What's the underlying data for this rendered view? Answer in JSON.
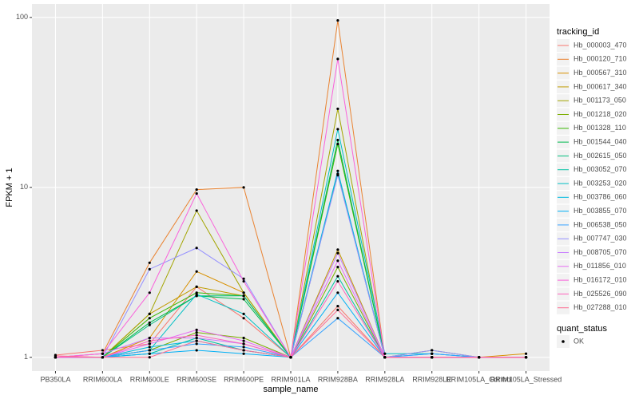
{
  "chart_data": {
    "type": "line",
    "x_label": "sample_name",
    "y_label": "FPKM + 1",
    "log_y": true,
    "grid": true,
    "categories": [
      "PB350LA",
      "RRIM600LA",
      "RRIM600LE",
      "RRIM600SE",
      "RRIM600PE",
      "RRIM901LA",
      "RRIM928BA",
      "RRIM928LA",
      "RRIM928LE",
      "RRIM105LA_Control",
      "RRIM105LA_Stressed"
    ],
    "ylim": [
      0.83,
      120
    ],
    "yticks": [
      1,
      10,
      100
    ],
    "legend_title": "tracking_id",
    "legend_position": "right",
    "point_legend_title": "quant_status",
    "point_legend_labels": [
      "OK"
    ],
    "point_color": "#000000",
    "series": [
      {
        "name": "Hb_000003_470",
        "color": "#F8766D",
        "values": [
          1.03,
          1.1,
          1.2,
          2.6,
          1.7,
          1,
          2.0,
          1,
          1,
          1,
          1
        ]
      },
      {
        "name": "Hb_000120_710",
        "color": "#EA8331",
        "values": [
          1,
          1.05,
          3.6,
          9.7,
          10,
          1,
          96,
          1,
          1,
          1,
          1
        ]
      },
      {
        "name": "Hb_000567_310",
        "color": "#D89000",
        "values": [
          1,
          1,
          1.3,
          3.2,
          2.4,
          1,
          12,
          1,
          1,
          1,
          1.05
        ]
      },
      {
        "name": "Hb_000617_340",
        "color": "#C09B00",
        "values": [
          1,
          1,
          1.8,
          2.6,
          2.3,
          1,
          4.3,
          1,
          1,
          1,
          1
        ]
      },
      {
        "name": "Hb_001173_050",
        "color": "#A3A500",
        "values": [
          1,
          1,
          1.8,
          7.3,
          2.4,
          1,
          29,
          1,
          1,
          1,
          1
        ]
      },
      {
        "name": "Hb_001218_020",
        "color": "#7CAE00",
        "values": [
          1,
          1,
          1.1,
          1.4,
          1.3,
          1,
          3.4,
          1,
          1.1,
          1,
          1
        ]
      },
      {
        "name": "Hb_001328_110",
        "color": "#39B600",
        "values": [
          1,
          1,
          1.7,
          2.4,
          2.3,
          1,
          18,
          1,
          1,
          1,
          1
        ]
      },
      {
        "name": "Hb_001544_040",
        "color": "#00BB4E",
        "values": [
          1,
          1,
          1.6,
          2.3,
          2.2,
          1,
          19,
          1,
          1,
          1,
          1
        ]
      },
      {
        "name": "Hb_002615_050",
        "color": "#00BF7D",
        "values": [
          1,
          1,
          1.55,
          2.3,
          2.3,
          1,
          12,
          1,
          1,
          1,
          1
        ]
      },
      {
        "name": "Hb_003052_070",
        "color": "#00C1A3",
        "values": [
          1,
          1,
          1.05,
          1.3,
          1.1,
          1,
          3.0,
          1,
          1,
          1,
          1
        ]
      },
      {
        "name": "Hb_003253_020",
        "color": "#00BFC4",
        "values": [
          1,
          1,
          1.1,
          2.35,
          1.8,
          1,
          22,
          1.05,
          1.05,
          1,
          1
        ]
      },
      {
        "name": "Hb_003786_060",
        "color": "#00BAE0",
        "values": [
          1,
          1,
          1.15,
          1.25,
          1.1,
          1,
          12.5,
          1,
          1,
          1,
          1
        ]
      },
      {
        "name": "Hb_003855_070",
        "color": "#00B0F6",
        "values": [
          1,
          1,
          1.05,
          1.1,
          1.05,
          1,
          2.4,
          1,
          1.05,
          1,
          1
        ]
      },
      {
        "name": "Hb_006538_050",
        "color": "#35A2FF",
        "values": [
          1,
          1,
          1.1,
          1.2,
          1.15,
          1,
          1.7,
          1,
          1.05,
          1,
          1
        ]
      },
      {
        "name": "Hb_007747_030",
        "color": "#9590FF",
        "values": [
          1,
          1,
          3.3,
          4.4,
          2.9,
          1,
          11.8,
          1,
          1.1,
          1,
          1
        ]
      },
      {
        "name": "Hb_008705_070",
        "color": "#C77CFF",
        "values": [
          1,
          1.05,
          1.3,
          1.3,
          1.2,
          1,
          4.1,
          1,
          1,
          1,
          1
        ]
      },
      {
        "name": "Hb_011856_010",
        "color": "#E76BF3",
        "values": [
          1,
          1,
          1.2,
          1.45,
          1.25,
          1,
          3.7,
          1,
          1,
          1,
          1
        ]
      },
      {
        "name": "Hb_016172_010",
        "color": "#FA62DB",
        "values": [
          1,
          1.05,
          2.4,
          9.2,
          2.8,
          1,
          57,
          1,
          1,
          1,
          1
        ]
      },
      {
        "name": "Hb_025526_090",
        "color": "#FF62BC",
        "values": [
          1,
          1,
          1.25,
          1.35,
          1.2,
          1,
          2.8,
          1,
          1,
          1,
          1
        ]
      },
      {
        "name": "Hb_027288_010",
        "color": "#FF6C91",
        "values": [
          1.02,
          1,
          1.0,
          1.25,
          1.1,
          1,
          1.9,
          1,
          1,
          1,
          1
        ]
      }
    ]
  }
}
